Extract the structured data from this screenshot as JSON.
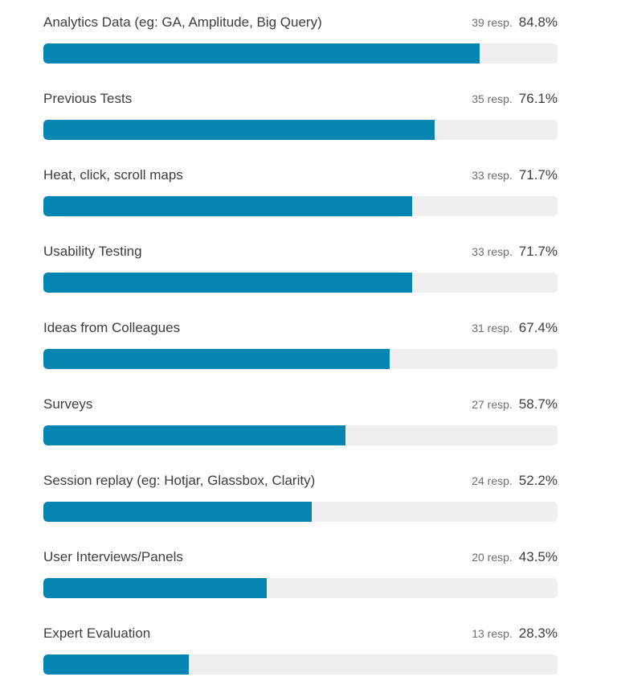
{
  "chart_data": {
    "type": "bar",
    "orientation": "horizontal",
    "categories": [
      "Analytics Data (eg: GA, Amplitude, Big Query)",
      "Previous Tests",
      "Heat, click, scroll maps",
      "Usability Testing",
      "Ideas from Colleagues",
      "Surveys",
      "Session replay (eg: Hotjar, Glassbox, Clarity)",
      "User Interviews/Panels",
      "Expert Evaluation"
    ],
    "responses": [
      "39 resp.",
      "35 resp.",
      "33 resp.",
      "33 resp.",
      "31 resp.",
      "27 resp.",
      "24 resp.",
      "20 resp.",
      "13 resp."
    ],
    "percent_labels": [
      "84.8%",
      "76.1%",
      "71.7%",
      "71.7%",
      "67.4%",
      "58.7%",
      "52.2%",
      "43.5%",
      "28.3%"
    ],
    "values": [
      84.8,
      76.1,
      71.7,
      71.7,
      67.4,
      58.7,
      52.2,
      43.5,
      28.3
    ],
    "xlim": [
      0,
      100
    ],
    "colors": {
      "bar": "#0486b1",
      "track": "#efefef"
    }
  }
}
